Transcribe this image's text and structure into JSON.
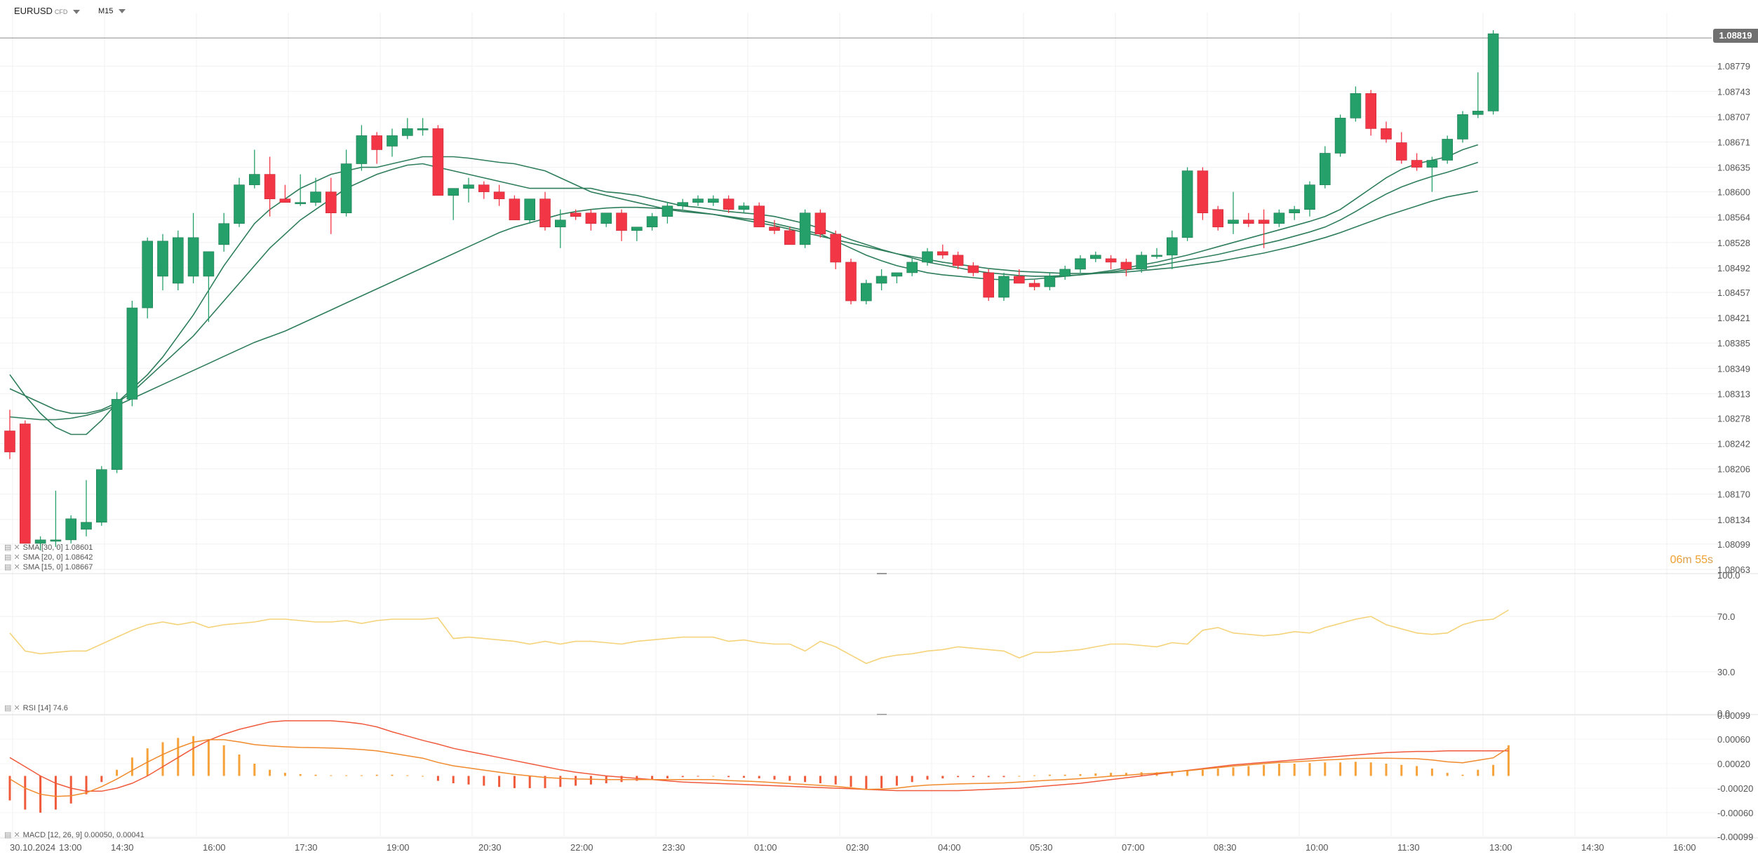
{
  "header": {
    "symbol": "EURUSD",
    "symbol_type": "CFD",
    "timeframe": "M15"
  },
  "current_price": "1.08819",
  "countdown": {
    "min": "06",
    "min_unit": "m",
    "sec": "55",
    "sec_unit": "s"
  },
  "colors": {
    "up": "#26a06a",
    "down": "#f23645",
    "ma": "#2e7d5b",
    "rsi": "#f5d37a",
    "macd": "#f08a2c",
    "signal": "#f05a3c"
  },
  "legends": {
    "sma1": "SMA [30, 0] 1.08601",
    "sma2": "SMA [20, 0] 1.08642",
    "sma3": "SMA [15, 0] 1.08667",
    "rsi": "RSI [14] 74.6",
    "macd": "MACD [12, 26, 9] 0.00050, 0.00041"
  },
  "price_axis": [
    "1.08779",
    "1.08743",
    "1.08707",
    "1.08671",
    "1.08635",
    "1.08600",
    "1.08564",
    "1.08528",
    "1.08492",
    "1.08457",
    "1.08421",
    "1.08385",
    "1.08349",
    "1.08313",
    "1.08278",
    "1.08242",
    "1.08206",
    "1.08170",
    "1.08134",
    "1.08099",
    "1.08063"
  ],
  "rsi_axis": [
    "100.0",
    "70.0",
    "30.0",
    "0.0"
  ],
  "macd_axis": [
    "0.00099",
    "0.00060",
    "0.00020",
    "-0.00020",
    "-0.00060",
    "-0.00099"
  ],
  "time_axis": [
    "30.10.2024",
    "13:00",
    "14:30",
    "16:00",
    "17:30",
    "19:00",
    "20:30",
    "22:00",
    "23:30",
    "01:00",
    "02:30",
    "04:00",
    "05:30",
    "07:00",
    "08:30",
    "10:00",
    "11:30",
    "13:00",
    "14:30",
    "16:00"
  ],
  "chart_data": {
    "type": "candlestick",
    "price_range": [
      1.08063,
      1.08855
    ],
    "candles": [
      [
        1.0826,
        1.0829,
        1.0822,
        1.0823
      ],
      [
        1.0827,
        1.08275,
        1.081,
        1.081
      ],
      [
        1.081,
        1.0811,
        1.0809,
        1.08105
      ],
      [
        1.08105,
        1.08175,
        1.08095,
        1.08105
      ],
      [
        1.08105,
        1.0814,
        1.081,
        1.08135
      ],
      [
        1.0812,
        1.0819,
        1.0811,
        1.0813
      ],
      [
        1.0813,
        1.0821,
        1.08125,
        1.08205
      ],
      [
        1.08205,
        1.08315,
        1.082,
        1.08305
      ],
      [
        1.08305,
        1.08445,
        1.08295,
        1.08435
      ],
      [
        1.08435,
        1.08535,
        1.0842,
        1.0853
      ],
      [
        1.0848,
        1.0854,
        1.0846,
        1.0853
      ],
      [
        1.0847,
        1.08545,
        1.0846,
        1.08535
      ],
      [
        1.0848,
        1.0857,
        1.0847,
        1.08535
      ],
      [
        1.0848,
        1.08515,
        1.08415,
        1.08515
      ],
      [
        1.08525,
        1.0857,
        1.08515,
        1.08555
      ],
      [
        1.08555,
        1.0862,
        1.0855,
        1.0861
      ],
      [
        1.0861,
        1.0866,
        1.08605,
        1.08625
      ],
      [
        1.08625,
        1.0865,
        1.08565,
        1.0859
      ],
      [
        1.0859,
        1.0861,
        1.08585,
        1.08585
      ],
      [
        1.08585,
        1.08625,
        1.0858,
        1.08585
      ],
      [
        1.08585,
        1.0862,
        1.0858,
        1.086
      ],
      [
        1.086,
        1.0862,
        1.0854,
        1.0857
      ],
      [
        1.0857,
        1.0866,
        1.08565,
        1.0864
      ],
      [
        1.0864,
        1.08695,
        1.0863,
        1.0868
      ],
      [
        1.0868,
        1.08685,
        1.0864,
        1.0866
      ],
      [
        1.08665,
        1.0869,
        1.0865,
        1.0868
      ],
      [
        1.0868,
        1.08705,
        1.08675,
        1.0869
      ],
      [
        1.0869,
        1.08705,
        1.0868,
        1.0869
      ],
      [
        1.0869,
        1.08695,
        1.08595,
        1.08595
      ],
      [
        1.08595,
        1.08605,
        1.0856,
        1.08605
      ],
      [
        1.08605,
        1.0862,
        1.08585,
        1.0861
      ],
      [
        1.0861,
        1.08615,
        1.0859,
        1.086
      ],
      [
        1.086,
        1.0861,
        1.0858,
        1.0859
      ],
      [
        1.0859,
        1.08595,
        1.0856,
        1.0856
      ],
      [
        1.0856,
        1.0859,
        1.08555,
        1.0859
      ],
      [
        1.0859,
        1.086,
        1.08545,
        1.0855
      ],
      [
        1.0855,
        1.08575,
        1.0852,
        1.0856
      ],
      [
        1.0857,
        1.08575,
        1.0856,
        1.08565
      ],
      [
        1.0857,
        1.08575,
        1.08545,
        1.08555
      ],
      [
        1.08555,
        1.0857,
        1.0855,
        1.0857
      ],
      [
        1.0857,
        1.08575,
        1.0853,
        1.08545
      ],
      [
        1.08545,
        1.0855,
        1.0853,
        1.0855
      ],
      [
        1.0855,
        1.0857,
        1.08545,
        1.08565
      ],
      [
        1.08565,
        1.08585,
        1.08555,
        1.0858
      ],
      [
        1.0858,
        1.0859,
        1.08575,
        1.08585
      ],
      [
        1.08585,
        1.08595,
        1.0858,
        1.0859
      ],
      [
        1.08585,
        1.08595,
        1.0858,
        1.0859
      ],
      [
        1.0859,
        1.08595,
        1.0857,
        1.08575
      ],
      [
        1.08575,
        1.08585,
        1.0857,
        1.0858
      ],
      [
        1.0858,
        1.08585,
        1.0855,
        1.0855
      ],
      [
        1.0855,
        1.0856,
        1.0854,
        1.08545
      ],
      [
        1.08545,
        1.0855,
        1.08525,
        1.08525
      ],
      [
        1.08525,
        1.08575,
        1.0852,
        1.0857
      ],
      [
        1.0857,
        1.08575,
        1.08535,
        1.0854
      ],
      [
        1.0854,
        1.08545,
        1.0849,
        1.085
      ],
      [
        1.085,
        1.08505,
        1.0844,
        1.08445
      ],
      [
        1.08445,
        1.08475,
        1.0844,
        1.0847
      ],
      [
        1.0847,
        1.0849,
        1.0846,
        1.0848
      ],
      [
        1.0848,
        1.08485,
        1.0847,
        1.08485
      ],
      [
        1.08485,
        1.08505,
        1.0848,
        1.085
      ],
      [
        1.085,
        1.0852,
        1.08495,
        1.08515
      ],
      [
        1.08515,
        1.08525,
        1.08505,
        1.0851
      ],
      [
        1.0851,
        1.08515,
        1.0849,
        1.08495
      ],
      [
        1.08495,
        1.085,
        1.0848,
        1.08485
      ],
      [
        1.08485,
        1.0849,
        1.08445,
        1.0845
      ],
      [
        1.0845,
        1.08485,
        1.08445,
        1.0848
      ],
      [
        1.0848,
        1.0849,
        1.0847,
        1.0847
      ],
      [
        1.0847,
        1.08475,
        1.0846,
        1.08465
      ],
      [
        1.08465,
        1.08485,
        1.0846,
        1.0848
      ],
      [
        1.0848,
        1.08495,
        1.08475,
        1.0849
      ],
      [
        1.0849,
        1.0851,
        1.08485,
        1.08505
      ],
      [
        1.08505,
        1.08515,
        1.085,
        1.0851
      ],
      [
        1.08505,
        1.0851,
        1.0849,
        1.085
      ],
      [
        1.085,
        1.08505,
        1.0848,
        1.0849
      ],
      [
        1.0849,
        1.08515,
        1.08485,
        1.0851
      ],
      [
        1.0851,
        1.0852,
        1.08505,
        1.0851
      ],
      [
        1.0851,
        1.08545,
        1.0849,
        1.08535
      ],
      [
        1.08535,
        1.08635,
        1.0853,
        1.0863
      ],
      [
        1.0863,
        1.08635,
        1.0856,
        1.0857
      ],
      [
        1.08575,
        1.0858,
        1.08545,
        1.0855
      ],
      [
        1.08555,
        1.086,
        1.0854,
        1.0856
      ],
      [
        1.0856,
        1.0857,
        1.0855,
        1.08555
      ],
      [
        1.0856,
        1.08575,
        1.0852,
        1.08555
      ],
      [
        1.08555,
        1.08575,
        1.0855,
        1.0857
      ],
      [
        1.0857,
        1.0858,
        1.0856,
        1.08575
      ],
      [
        1.08575,
        1.08615,
        1.08565,
        1.0861
      ],
      [
        1.0861,
        1.08665,
        1.08605,
        1.08655
      ],
      [
        1.08655,
        1.0871,
        1.0865,
        1.08705
      ],
      [
        1.08705,
        1.0875,
        1.087,
        1.0874
      ],
      [
        1.0874,
        1.08745,
        1.0868,
        1.0869
      ],
      [
        1.0869,
        1.087,
        1.0867,
        1.08675
      ],
      [
        1.0867,
        1.08685,
        1.0864,
        1.08645
      ],
      [
        1.08645,
        1.08655,
        1.0863,
        1.08635
      ],
      [
        1.08635,
        1.0865,
        1.086,
        1.08645
      ],
      [
        1.08645,
        1.0868,
        1.0864,
        1.08675
      ],
      [
        1.08675,
        1.08715,
        1.0867,
        1.0871
      ],
      [
        1.0871,
        1.0877,
        1.08705,
        1.08715
      ],
      [
        1.08715,
        1.0883,
        1.0871,
        1.08825
      ]
    ],
    "sma15": [
      1.0834,
      1.0831,
      1.08285,
      1.08265,
      1.08255,
      1.08255,
      1.08275,
      1.083,
      1.0832,
      1.0834,
      1.08365,
      1.08395,
      1.08425,
      1.0846,
      1.08495,
      1.08525,
      1.08555,
      1.08575,
      1.0859,
      1.08605,
      1.08615,
      1.08625,
      1.0863,
      1.08635,
      1.08635,
      1.0864,
      1.08645,
      1.0865,
      1.0865,
      1.0865,
      1.08648,
      1.08645,
      1.08642,
      1.0864,
      1.08635,
      1.0863,
      1.0862,
      1.0861,
      1.086,
      1.08595,
      1.0859,
      1.08585,
      1.0858,
      1.08575,
      1.08572,
      1.0857,
      1.08568,
      1.08565,
      1.08562,
      1.0856,
      1.08555,
      1.0855,
      1.08545,
      1.0854,
      1.0853,
      1.0852,
      1.0851,
      1.08502,
      1.08495,
      1.0849,
      1.08485,
      1.08482,
      1.0848,
      1.08478,
      1.08476,
      1.08475,
      1.08475,
      1.08476,
      1.08478,
      1.0848,
      1.08482,
      1.08485,
      1.08488,
      1.08492,
      1.08496,
      1.085,
      1.08505,
      1.0851,
      1.08516,
      1.08522,
      1.08528,
      1.08534,
      1.0854,
      1.08546,
      1.08552,
      1.08558,
      1.08565,
      1.08575,
      1.0859,
      1.08605,
      1.0862,
      1.08632,
      1.0864,
      1.08645,
      1.0865,
      1.0866,
      1.08667
    ],
    "sma20": [
      1.0832,
      1.0831,
      1.083,
      1.0829,
      1.08285,
      1.08285,
      1.0829,
      1.083,
      1.08315,
      1.08335,
      1.08355,
      1.08375,
      1.08395,
      1.0842,
      1.08445,
      1.0847,
      1.08495,
      1.0852,
      1.0854,
      1.0856,
      1.08575,
      1.0859,
      1.08605,
      1.08615,
      1.08625,
      1.08632,
      1.08638,
      1.0864,
      1.08635,
      1.0863,
      1.08625,
      1.0862,
      1.08615,
      1.0861,
      1.08605,
      1.08605,
      1.08605,
      1.08605,
      1.08605,
      1.086,
      1.08598,
      1.08595,
      1.0859,
      1.08585,
      1.0858,
      1.08578,
      1.08575,
      1.08572,
      1.0857,
      1.08568,
      1.08565,
      1.0856,
      1.08555,
      1.08548,
      1.0854,
      1.08532,
      1.08525,
      1.08518,
      1.08512,
      1.08506,
      1.085,
      1.08496,
      1.08492,
      1.08488,
      1.08485,
      1.08483,
      1.08481,
      1.0848,
      1.0848,
      1.08481,
      1.08482,
      1.08484,
      1.08486,
      1.08489,
      1.08492,
      1.08495,
      1.08499,
      1.08503,
      1.08507,
      1.08511,
      1.08516,
      1.08521,
      1.08526,
      1.08531,
      1.08537,
      1.08543,
      1.0855,
      1.0856,
      1.08572,
      1.08585,
      1.08597,
      1.08607,
      1.08615,
      1.08622,
      1.08628,
      1.08635,
      1.08642
    ],
    "sma30": [
      1.0828,
      1.08278,
      1.08276,
      1.08276,
      1.08278,
      1.08282,
      1.08288,
      1.08296,
      1.08306,
      1.08316,
      1.08326,
      1.08336,
      1.08346,
      1.08356,
      1.08366,
      1.08376,
      1.08386,
      1.08394,
      1.08402,
      1.08412,
      1.08422,
      1.08432,
      1.08442,
      1.08452,
      1.08462,
      1.08472,
      1.08482,
      1.08492,
      1.08502,
      1.08512,
      1.08522,
      1.08532,
      1.08542,
      1.0855,
      1.08556,
      1.08562,
      1.08568,
      1.08572,
      1.08575,
      1.08577,
      1.08578,
      1.08578,
      1.08577,
      1.08576,
      1.08574,
      1.08571,
      1.08568,
      1.08564,
      1.0856,
      1.08556,
      1.08552,
      1.08547,
      1.08542,
      1.08537,
      1.08532,
      1.08527,
      1.08522,
      1.08517,
      1.08512,
      1.08508,
      1.08504,
      1.085,
      1.08497,
      1.08494,
      1.08491,
      1.08489,
      1.08487,
      1.08486,
      1.08485,
      1.08484,
      1.08484,
      1.08484,
      1.08485,
      1.08486,
      1.08488,
      1.0849,
      1.08492,
      1.08495,
      1.08498,
      1.08501,
      1.08505,
      1.08509,
      1.08513,
      1.08518,
      1.08523,
      1.08529,
      1.08535,
      1.08542,
      1.0855,
      1.08558,
      1.08566,
      1.08573,
      1.0858,
      1.08587,
      1.08593,
      1.08597,
      1.08601
    ],
    "rsi": [
      58,
      45,
      43,
      44,
      45,
      45,
      50,
      55,
      60,
      64,
      66,
      64,
      66,
      62,
      64,
      65,
      66,
      68,
      68,
      67,
      66,
      66,
      67,
      65,
      67,
      68,
      68,
      68,
      69,
      54,
      55,
      54,
      53,
      52,
      50,
      52,
      50,
      52,
      52,
      51,
      50,
      52,
      53,
      54,
      55,
      55,
      55,
      52,
      53,
      51,
      50,
      50,
      45,
      52,
      48,
      42,
      36,
      40,
      42,
      43,
      45,
      46,
      48,
      47,
      46,
      45,
      40,
      44,
      44,
      45,
      46,
      48,
      50,
      50,
      49,
      48,
      51,
      50,
      60,
      62,
      58,
      57,
      56,
      57,
      59,
      58,
      62,
      65,
      68,
      70,
      64,
      61,
      58,
      57,
      58,
      64,
      67,
      68,
      74.6
    ],
    "macd": [
      -0.0004,
      -0.00055,
      -0.0006,
      -0.00055,
      -0.00045,
      -0.0003,
      -0.0001,
      0.0001,
      0.0003,
      0.00045,
      0.00055,
      0.00062,
      0.00065,
      0.0006,
      0.0005,
      0.00035,
      0.0002,
      0.0001,
      5e-05,
      3e-05,
      2e-05,
      1e-05,
      1e-05,
      1e-05,
      2e-05,
      2e-05,
      1e-05,
      0,
      -8e-05,
      -0.00012,
      -0.00014,
      -0.00016,
      -0.00018,
      -0.0002,
      -0.0002,
      -0.0002,
      -0.00018,
      -0.00016,
      -0.00014,
      -0.00012,
      -0.0001,
      -8e-05,
      -6e-05,
      -4e-05,
      -2e-05,
      -1e-05,
      0,
      -2e-05,
      -3e-05,
      -4e-05,
      -6e-05,
      -8e-05,
      -0.0001,
      -0.00012,
      -0.00014,
      -0.00018,
      -0.00022,
      -0.0002,
      -0.00016,
      -0.0001,
      -6e-05,
      -4e-05,
      -2e-05,
      -2e-05,
      -2e-05,
      -2e-05,
      0,
      1e-05,
      2e-05,
      2e-05,
      3e-05,
      4e-05,
      5e-05,
      5e-05,
      6e-05,
      6e-05,
      7e-05,
      8e-05,
      0.0001,
      0.00012,
      0.00014,
      0.00016,
      0.00018,
      0.0002,
      0.0002,
      0.00021,
      0.00022,
      0.00022,
      0.00023,
      0.00022,
      0.0002,
      0.00018,
      0.00016,
      0.00012,
      5e-05,
      2e-05,
      0.0001,
      0.00018,
      0.0005
    ],
    "signal": [
      0.0003,
      0.00015,
      0.0,
      -0.00012,
      -0.0002,
      -0.00025,
      -0.00025,
      -0.0002,
      -0.00012,
      0.0,
      0.00015,
      0.0003,
      0.00045,
      0.00058,
      0.00068,
      0.00076,
      0.00082,
      0.00088,
      0.0009,
      0.0009,
      0.0009,
      0.0009,
      0.00088,
      0.00085,
      0.0008,
      0.00072,
      0.00065,
      0.00058,
      0.00052,
      0.00045,
      0.0004,
      0.00035,
      0.0003,
      0.00025,
      0.0002,
      0.00015,
      0.0001,
      6e-05,
      3e-05,
      0.0,
      -2e-05,
      -4e-05,
      -6e-05,
      -8e-05,
      -0.0001,
      -0.00011,
      -0.00012,
      -0.00013,
      -0.00014,
      -0.00015,
      -0.00016,
      -0.00017,
      -0.00018,
      -0.00019,
      -0.0002,
      -0.00021,
      -0.00022,
      -0.00023,
      -0.00024,
      -0.00024,
      -0.00024,
      -0.00024,
      -0.00024,
      -0.00023,
      -0.00022,
      -0.00021,
      -0.0002,
      -0.00018,
      -0.00016,
      -0.00014,
      -0.00012,
      -9e-05,
      -6e-05,
      -3e-05,
      0.0,
      3e-05,
      6e-05,
      9e-05,
      0.00012,
      0.00015,
      0.00018,
      0.0002,
      0.00022,
      0.00024,
      0.00026,
      0.00028,
      0.0003,
      0.00032,
      0.00034,
      0.00036,
      0.00038,
      0.00039,
      0.0004,
      0.0004,
      0.00041,
      0.00041,
      0.00041,
      0.00041,
      0.00041
    ]
  }
}
